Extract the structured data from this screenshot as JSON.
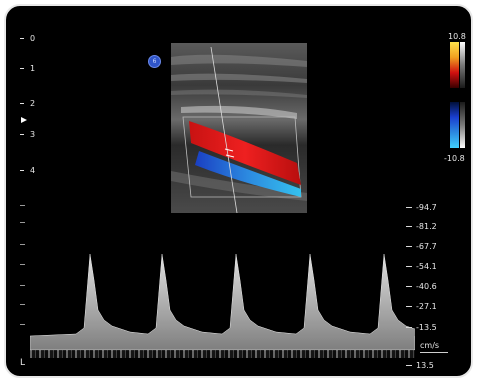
{
  "screen": "Ultrasound Doppler display",
  "depth_scale": {
    "labels": [
      "0",
      "1",
      "2",
      "3",
      "4"
    ]
  },
  "probe_badge": {
    "label": "6"
  },
  "color_scale": {
    "max_label": "10.8",
    "min_label": "-10.8",
    "colors": {
      "positive_top": "#ffe24a",
      "positive_mid": "#e02020",
      "negative_mid": "#2060e0",
      "negative_bottom": "#40d0ff"
    }
  },
  "velocity_scale": {
    "labels": [
      "-94.7",
      "-81.2",
      "-67.7",
      "-54.1",
      "-40.6",
      "-27.1",
      "-13.5"
    ],
    "unit": "cm/s",
    "bottom_label": "13.5"
  },
  "corner_label": "L",
  "colors": {
    "flow_red": "#e11919",
    "flow_blue": "#1f55d6",
    "flow_cyan": "#2fb4e6"
  }
}
